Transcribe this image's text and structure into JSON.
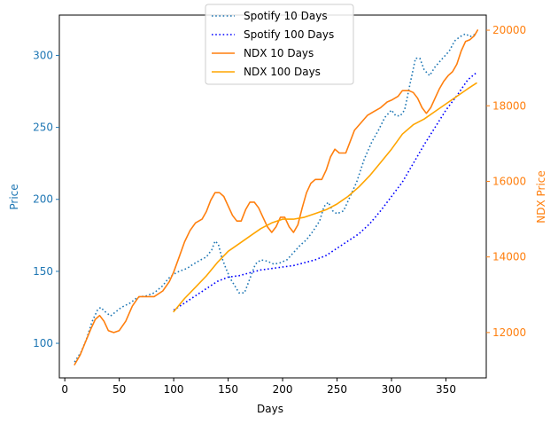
{
  "chart_data": {
    "type": "line",
    "title": "",
    "xlabel": "Days",
    "ylabel_left": "Price",
    "ylabel_right": "NDX Price",
    "xlim": [
      -5,
      387
    ],
    "ylim_left": [
      76,
      328
    ],
    "ylim_right": [
      10800,
      20400
    ],
    "xticks": [
      0,
      50,
      100,
      150,
      200,
      250,
      300,
      350
    ],
    "yticks_left": [
      100,
      150,
      200,
      250,
      300
    ],
    "yticks_right": [
      12000,
      14000,
      16000,
      18000,
      20000
    ],
    "legend_position": "top-center",
    "colors": {
      "left_axis": "#1f77b4",
      "right_axis": "#ff7f0e",
      "spotify_10": "#1f77b4",
      "spotify_100": "#0000ff",
      "ndx_10": "#ff7f0e",
      "ndx_100": "#ffa500"
    },
    "series": [
      {
        "name": "Spotify 10 Days",
        "axis": "left",
        "style": "dotted",
        "points": [
          [
            9,
            87
          ],
          [
            15,
            94
          ],
          [
            20,
            103
          ],
          [
            25,
            115
          ],
          [
            30,
            123
          ],
          [
            33,
            125
          ],
          [
            37,
            122
          ],
          [
            42,
            119
          ],
          [
            47,
            122
          ],
          [
            52,
            125
          ],
          [
            60,
            128
          ],
          [
            67,
            132
          ],
          [
            75,
            133
          ],
          [
            82,
            135
          ],
          [
            90,
            140
          ],
          [
            95,
            145
          ],
          [
            100,
            148
          ],
          [
            105,
            150
          ],
          [
            112,
            152
          ],
          [
            118,
            155
          ],
          [
            125,
            158
          ],
          [
            130,
            160
          ],
          [
            135,
            165
          ],
          [
            138,
            171
          ],
          [
            141,
            169
          ],
          [
            144,
            160
          ],
          [
            148,
            152
          ],
          [
            152,
            145
          ],
          [
            156,
            140
          ],
          [
            160,
            135
          ],
          [
            165,
            135
          ],
          [
            170,
            145
          ],
          [
            175,
            155
          ],
          [
            180,
            158
          ],
          [
            186,
            157
          ],
          [
            192,
            155
          ],
          [
            198,
            156
          ],
          [
            204,
            158
          ],
          [
            210,
            163
          ],
          [
            216,
            168
          ],
          [
            222,
            172
          ],
          [
            228,
            178
          ],
          [
            234,
            185
          ],
          [
            238,
            195
          ],
          [
            242,
            198
          ],
          [
            246,
            192
          ],
          [
            250,
            190
          ],
          [
            256,
            192
          ],
          [
            262,
            202
          ],
          [
            268,
            212
          ],
          [
            275,
            228
          ],
          [
            282,
            240
          ],
          [
            288,
            248
          ],
          [
            294,
            257
          ],
          [
            300,
            262
          ],
          [
            304,
            258
          ],
          [
            308,
            258
          ],
          [
            312,
            262
          ],
          [
            317,
            280
          ],
          [
            322,
            298
          ],
          [
            326,
            298
          ],
          [
            330,
            290
          ],
          [
            335,
            286
          ],
          [
            340,
            292
          ],
          [
            347,
            298
          ],
          [
            353,
            303
          ],
          [
            358,
            310
          ],
          [
            363,
            313
          ],
          [
            368,
            315
          ],
          [
            372,
            313
          ],
          [
            378,
            315
          ]
        ]
      },
      {
        "name": "Spotify 100 Days",
        "axis": "left",
        "style": "dotted",
        "points": [
          [
            100,
            123
          ],
          [
            110,
            128
          ],
          [
            120,
            133
          ],
          [
            130,
            138
          ],
          [
            140,
            143
          ],
          [
            150,
            146
          ],
          [
            160,
            147
          ],
          [
            170,
            149
          ],
          [
            180,
            151
          ],
          [
            190,
            152
          ],
          [
            200,
            153
          ],
          [
            210,
            154
          ],
          [
            220,
            156
          ],
          [
            230,
            158
          ],
          [
            240,
            161
          ],
          [
            250,
            166
          ],
          [
            260,
            171
          ],
          [
            270,
            176
          ],
          [
            280,
            183
          ],
          [
            290,
            192
          ],
          [
            300,
            202
          ],
          [
            310,
            212
          ],
          [
            320,
            225
          ],
          [
            330,
            238
          ],
          [
            340,
            250
          ],
          [
            350,
            262
          ],
          [
            360,
            272
          ],
          [
            370,
            283
          ],
          [
            378,
            288
          ]
        ]
      },
      {
        "name": "NDX 10 Days",
        "axis": "right",
        "style": "solid",
        "points": [
          [
            9,
            11150
          ],
          [
            14,
            11400
          ],
          [
            19,
            11750
          ],
          [
            24,
            12100
          ],
          [
            28,
            12350
          ],
          [
            32,
            12450
          ],
          [
            36,
            12300
          ],
          [
            40,
            12050
          ],
          [
            45,
            12000
          ],
          [
            50,
            12050
          ],
          [
            56,
            12300
          ],
          [
            62,
            12700
          ],
          [
            68,
            12950
          ],
          [
            75,
            12950
          ],
          [
            82,
            12950
          ],
          [
            90,
            13100
          ],
          [
            96,
            13350
          ],
          [
            100,
            13600
          ],
          [
            105,
            14000
          ],
          [
            110,
            14400
          ],
          [
            115,
            14700
          ],
          [
            120,
            14900
          ],
          [
            126,
            15000
          ],
          [
            130,
            15200
          ],
          [
            134,
            15500
          ],
          [
            138,
            15700
          ],
          [
            142,
            15700
          ],
          [
            146,
            15600
          ],
          [
            150,
            15350
          ],
          [
            154,
            15100
          ],
          [
            158,
            14950
          ],
          [
            162,
            14950
          ],
          [
            166,
            15250
          ],
          [
            170,
            15450
          ],
          [
            174,
            15450
          ],
          [
            178,
            15300
          ],
          [
            182,
            15050
          ],
          [
            186,
            14800
          ],
          [
            190,
            14650
          ],
          [
            194,
            14800
          ],
          [
            198,
            15050
          ],
          [
            202,
            15050
          ],
          [
            206,
            14800
          ],
          [
            210,
            14650
          ],
          [
            214,
            14850
          ],
          [
            218,
            15300
          ],
          [
            222,
            15700
          ],
          [
            226,
            15950
          ],
          [
            230,
            16050
          ],
          [
            236,
            16050
          ],
          [
            240,
            16300
          ],
          [
            244,
            16650
          ],
          [
            248,
            16850
          ],
          [
            252,
            16750
          ],
          [
            258,
            16750
          ],
          [
            262,
            17050
          ],
          [
            266,
            17350
          ],
          [
            272,
            17550
          ],
          [
            278,
            17750
          ],
          [
            284,
            17850
          ],
          [
            290,
            17950
          ],
          [
            296,
            18100
          ],
          [
            300,
            18150
          ],
          [
            306,
            18250
          ],
          [
            310,
            18400
          ],
          [
            316,
            18400
          ],
          [
            320,
            18350
          ],
          [
            324,
            18200
          ],
          [
            328,
            17950
          ],
          [
            332,
            17800
          ],
          [
            336,
            17950
          ],
          [
            340,
            18200
          ],
          [
            344,
            18450
          ],
          [
            348,
            18650
          ],
          [
            352,
            18800
          ],
          [
            356,
            18900
          ],
          [
            360,
            19100
          ],
          [
            364,
            19450
          ],
          [
            368,
            19700
          ],
          [
            372,
            19750
          ],
          [
            376,
            19850
          ],
          [
            379,
            20000
          ]
        ]
      },
      {
        "name": "NDX 100 Days",
        "axis": "right",
        "style": "solid",
        "points": [
          [
            100,
            12550
          ],
          [
            110,
            12900
          ],
          [
            120,
            13200
          ],
          [
            130,
            13500
          ],
          [
            140,
            13850
          ],
          [
            150,
            14150
          ],
          [
            160,
            14350
          ],
          [
            170,
            14550
          ],
          [
            180,
            14750
          ],
          [
            190,
            14900
          ],
          [
            200,
            15000
          ],
          [
            210,
            15000
          ],
          [
            220,
            15050
          ],
          [
            230,
            15150
          ],
          [
            240,
            15250
          ],
          [
            250,
            15400
          ],
          [
            260,
            15600
          ],
          [
            270,
            15850
          ],
          [
            280,
            16150
          ],
          [
            290,
            16500
          ],
          [
            300,
            16850
          ],
          [
            310,
            17250
          ],
          [
            320,
            17500
          ],
          [
            330,
            17650
          ],
          [
            340,
            17850
          ],
          [
            350,
            18050
          ],
          [
            360,
            18250
          ],
          [
            370,
            18450
          ],
          [
            378,
            18600
          ]
        ]
      }
    ]
  }
}
